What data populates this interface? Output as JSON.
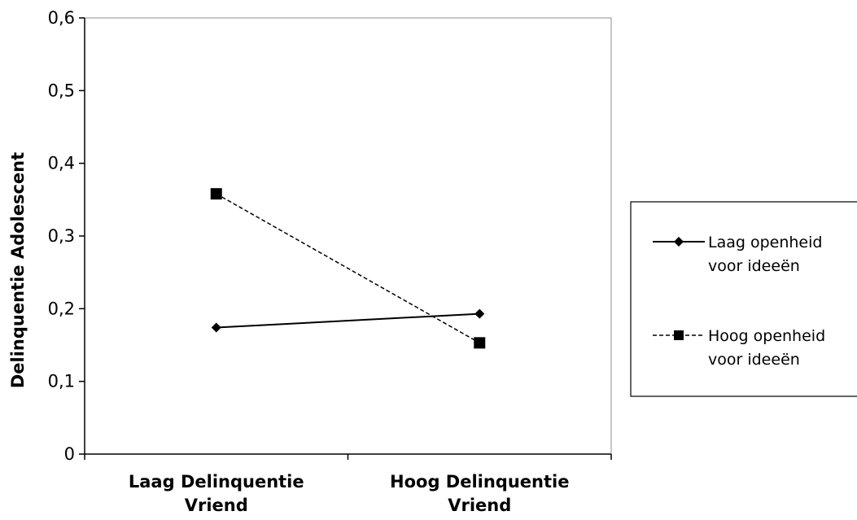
{
  "chart_data": {
    "type": "line",
    "categories": [
      [
        "Laag Delinquentie",
        "Vriend"
      ],
      [
        "Hoog Delinquentie",
        "Vriend"
      ]
    ],
    "ylabel": "Delinquentie Adolescent",
    "xlabel": "",
    "title": "",
    "ylim": [
      0,
      0.6
    ],
    "yticks": [
      0,
      0.1,
      0.2,
      0.3,
      0.4,
      0.5,
      0.6
    ],
    "ytick_labels": [
      "0",
      "0,1",
      "0,2",
      "0,3",
      "0,4",
      "0,5",
      "0,6"
    ],
    "grid": false,
    "legend_position": "right",
    "series": [
      {
        "name_lines": [
          "Laag openheid",
          "voor ideeën"
        ],
        "values": [
          0.174,
          0.193
        ],
        "marker": "diamond",
        "line_style": "solid",
        "color": "#000000"
      },
      {
        "name_lines": [
          "Hoog openheid",
          "voor ideeën"
        ],
        "values": [
          0.358,
          0.153
        ],
        "marker": "square",
        "line_style": "dashed",
        "color": "#000000"
      }
    ]
  }
}
